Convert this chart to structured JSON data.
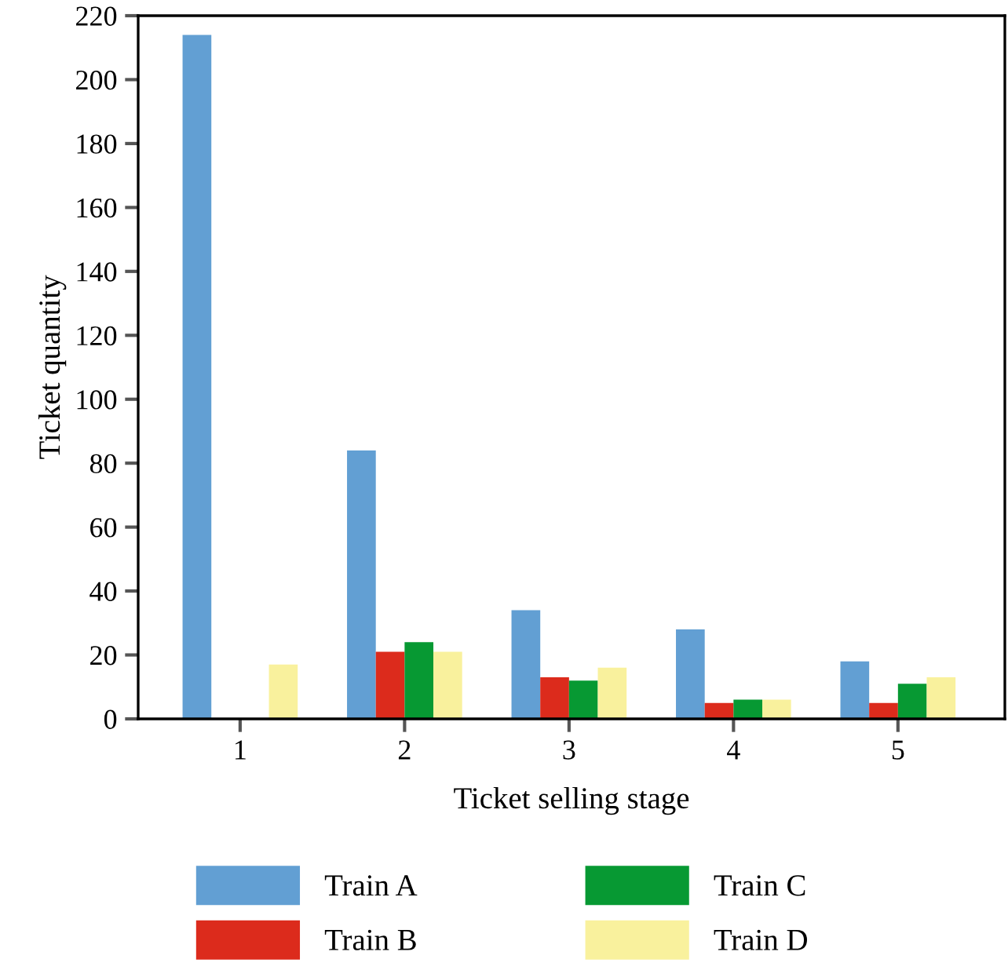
{
  "chart_data": {
    "type": "bar",
    "xlabel": "Ticket selling stage",
    "ylabel": "Ticket quantity",
    "categories": [
      "1",
      "2",
      "3",
      "4",
      "5"
    ],
    "series": [
      {
        "name": "Train A",
        "color": "#629fd3",
        "values": [
          214,
          84,
          34,
          28,
          18
        ]
      },
      {
        "name": "Train B",
        "color": "#dc2b1c",
        "values": [
          0,
          21,
          13,
          5,
          5
        ]
      },
      {
        "name": "Train C",
        "color": "#079933",
        "values": [
          0,
          24,
          12,
          6,
          11
        ]
      },
      {
        "name": "Train D",
        "color": "#f9f19d",
        "values": [
          17,
          21,
          16,
          6,
          13
        ]
      }
    ],
    "ylim": [
      0,
      220
    ],
    "yticks": [
      0,
      20,
      40,
      60,
      80,
      100,
      120,
      140,
      160,
      180,
      200,
      220
    ],
    "grid": false,
    "legend": "bottom"
  }
}
